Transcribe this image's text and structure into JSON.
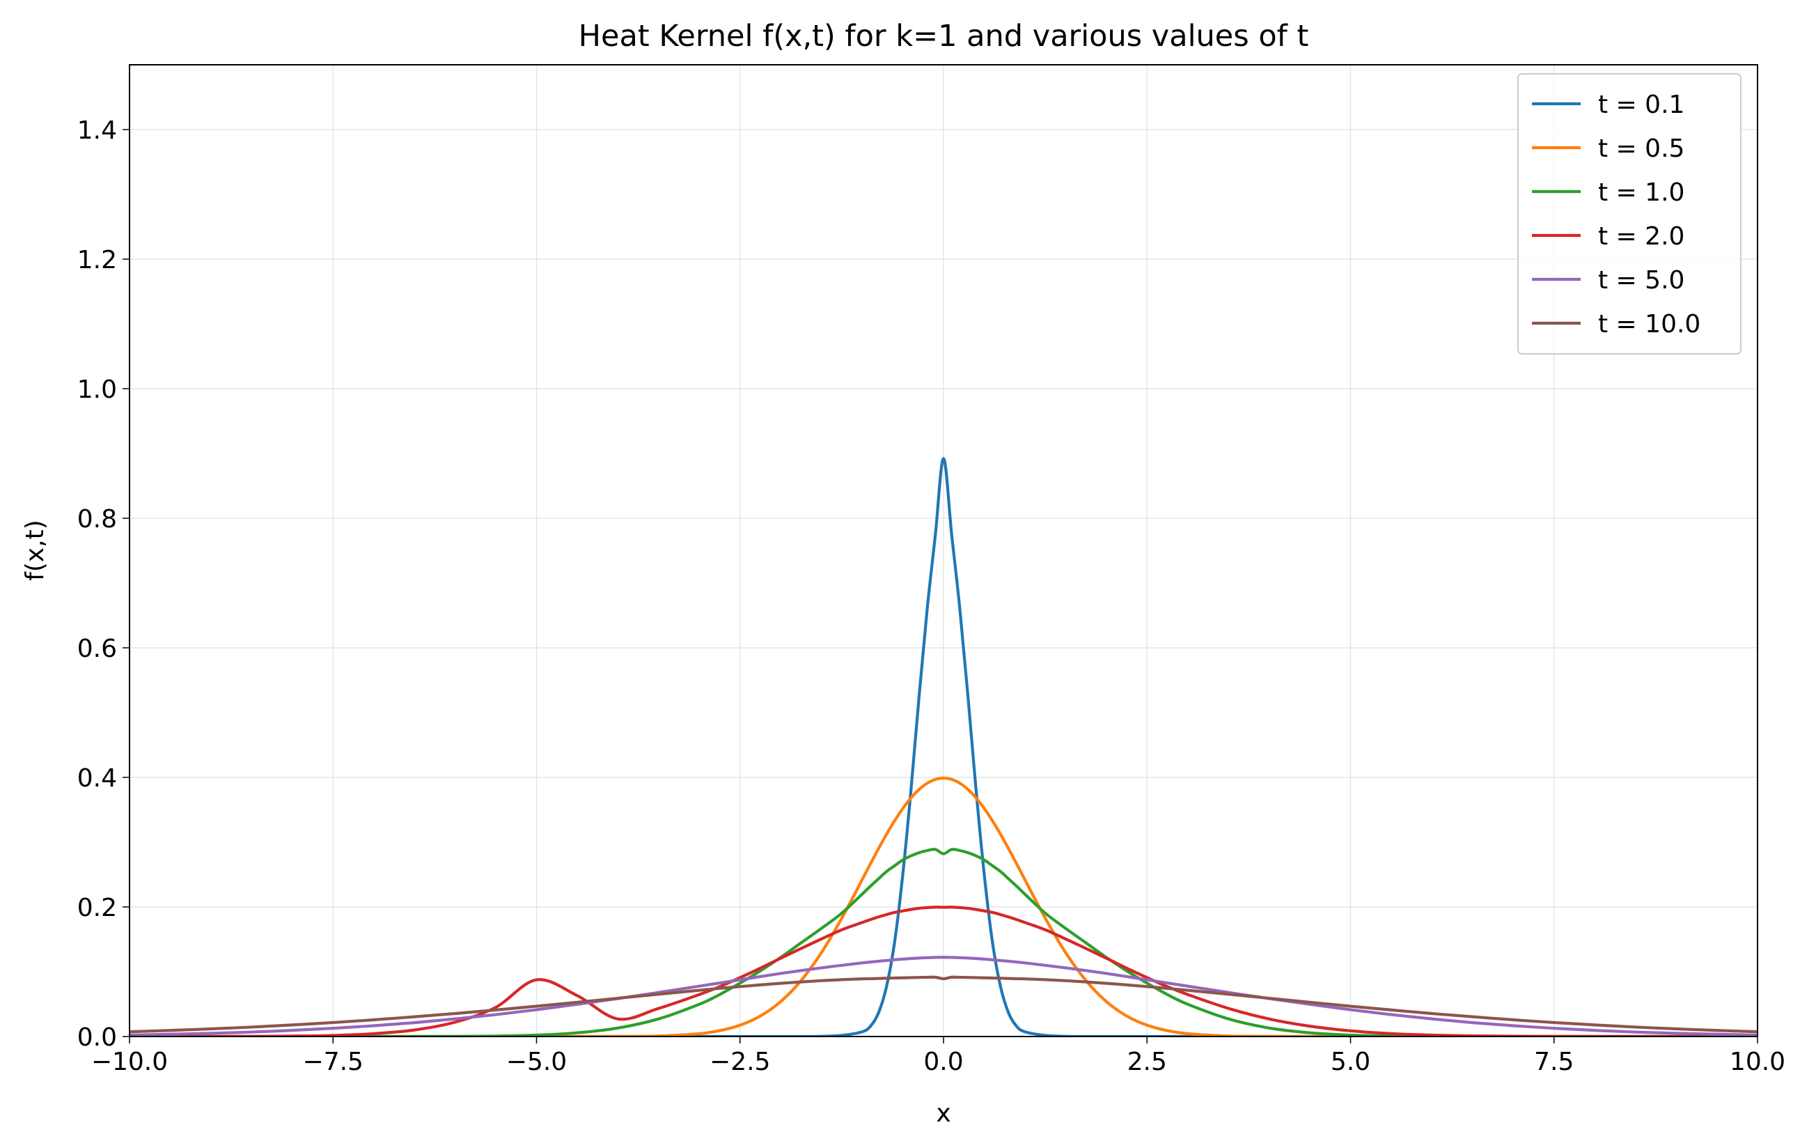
{
  "chart_data": {
    "type": "line",
    "title": "Heat Kernel f(x,t) for k=1 and various values of t",
    "xlabel": "x",
    "ylabel": "f(x,t)",
    "xlim": [
      -10,
      10
    ],
    "ylim": [
      0,
      1.5
    ],
    "xticks": [
      -10,
      -7.5,
      -5,
      -2.5,
      0,
      2.5,
      5,
      7.5,
      10
    ],
    "xtick_labels": [
      "−10.0",
      "−7.5",
      "−5.0",
      "−2.5",
      "0.0",
      "2.5",
      "5.0",
      "7.5",
      "10.0"
    ],
    "yticks": [
      0,
      0.2,
      0.4,
      0.6,
      0.8,
      1.0,
      1.2,
      1.4
    ],
    "ytick_labels": [
      "0.0",
      "0.2",
      "0.4",
      "0.6",
      "0.8",
      "1.0",
      "1.2",
      "1.4"
    ],
    "grid": true,
    "legend_position": "top-right",
    "x": [
      -10,
      -9.5,
      -9,
      -8.5,
      -8,
      -7.5,
      -7,
      -6.5,
      -6,
      -5.5,
      -5,
      -4.5,
      -4,
      -3.5,
      -3,
      -2.75,
      -2.5,
      -2.25,
      -2,
      -1.75,
      -1.5,
      -1.25,
      -1,
      -0.9,
      -0.8,
      -0.7,
      -0.6,
      -0.5,
      -0.4,
      -0.3,
      -0.2,
      -0.1,
      0,
      0.1,
      0.2,
      0.3,
      0.4,
      0.5,
      0.6,
      0.7,
      0.8,
      0.9,
      1,
      1.25,
      1.5,
      1.75,
      2,
      2.25,
      2.5,
      2.75,
      3,
      3.5,
      4,
      4.5,
      5,
      5.5,
      6,
      6.5,
      7,
      7.5,
      8,
      8.5,
      9,
      9.5,
      10
    ],
    "series": [
      {
        "name": "t = 0.1",
        "color": "#1f77b4",
        "values": [
          0,
          0,
          0,
          0,
          0,
          0,
          0,
          0,
          0,
          0,
          0,
          0,
          0,
          0,
          0,
          0,
          0,
          0,
          0,
          0,
          0.00032,
          0.00177,
          0.0073,
          0.0155,
          0.0361,
          0.0772,
          0.1466,
          0.2505,
          0.3802,
          0.5254,
          0.6607,
          0.7749,
          0.8921,
          0.7749,
          0.6607,
          0.5254,
          0.3802,
          0.2505,
          0.1466,
          0.0772,
          0.0361,
          0.0155,
          0.0073,
          0.00177,
          0.00032,
          0,
          0,
          0,
          0,
          0,
          0,
          0,
          0,
          0,
          0,
          0,
          0,
          0,
          0,
          0,
          0,
          0,
          0,
          0,
          0
        ]
      },
      {
        "name": "t = 0.5",
        "color": "#ff7f0e",
        "values": [
          0,
          0,
          0,
          0,
          0,
          0,
          0,
          0,
          0,
          0,
          0,
          0,
          0.00013,
          0.00087,
          0.0044,
          0.0091,
          0.0175,
          0.0317,
          0.054,
          0.0863,
          0.1295,
          0.1826,
          0.242,
          0.2661,
          0.2897,
          0.3123,
          0.3332,
          0.3521,
          0.3683,
          0.3814,
          0.391,
          0.3969,
          0.3989,
          0.3969,
          0.391,
          0.3814,
          0.3683,
          0.3521,
          0.3332,
          0.3123,
          0.2897,
          0.2661,
          0.242,
          0.1826,
          0.1295,
          0.0863,
          0.054,
          0.0317,
          0.0175,
          0.0091,
          0.0044,
          0.00087,
          0.00013,
          0,
          0,
          0,
          0,
          0,
          0,
          0,
          0,
          0,
          0,
          0,
          0
        ]
      },
      {
        "name": "t = 1.0",
        "color": "#2ca02c",
        "values": [
          0,
          0,
          0,
          0,
          0,
          0,
          1e-05,
          6e-05,
          0.00023,
          0.00076,
          0.0022,
          0.0057,
          0.0131,
          0.0272,
          0.0498,
          0.0648,
          0.0824,
          0.1014,
          0.1221,
          0.1446,
          0.1669,
          0.1904,
          0.2197,
          0.2318,
          0.2433,
          0.2547,
          0.2637,
          0.2725,
          0.2789,
          0.2838,
          0.2871,
          0.2888,
          0.2821,
          0.2888,
          0.2871,
          0.2838,
          0.2789,
          0.2725,
          0.2637,
          0.2547,
          0.2433,
          0.2318,
          0.2197,
          0.1904,
          0.1669,
          0.1446,
          0.1221,
          0.1014,
          0.0824,
          0.0648,
          0.0498,
          0.0272,
          0.0131,
          0.0057,
          0.0022,
          0.00076,
          0.00023,
          6e-05,
          1e-05,
          0,
          0,
          0,
          0,
          0,
          0
        ]
      },
      {
        "name": "t = 2.0",
        "color": "#d62728",
        "values": [
          1e-05,
          3e-05,
          8e-05,
          0.00023,
          0.00067,
          0.0017,
          0.0044,
          0.0101,
          0.0222,
          0.0451,
          0.0876,
          0.0632,
          0.0271,
          0.0434,
          0.0648,
          0.0769,
          0.0909,
          0.1055,
          0.1209,
          0.1359,
          0.1506,
          0.1647,
          0.176,
          0.1804,
          0.1845,
          0.1882,
          0.1916,
          0.1939,
          0.1961,
          0.1979,
          0.199,
          0.1997,
          0.1995,
          0.1997,
          0.199,
          0.1979,
          0.1961,
          0.1939,
          0.1916,
          0.1882,
          0.1845,
          0.1804,
          0.176,
          0.1647,
          0.1506,
          0.1359,
          0.1209,
          0.1055,
          0.0909,
          0.0769,
          0.0648,
          0.0434,
          0.0271,
          0.016,
          0.0088,
          0.0045,
          0.0022,
          0.001,
          0.0004,
          0.00017,
          7e-05,
          3e-05,
          1e-05,
          0,
          0
        ]
      },
      {
        "name": "t = 5.0",
        "color": "#9467bd",
        "values": [
          0.0023,
          0.0035,
          0.005,
          0.0069,
          0.0095,
          0.0127,
          0.0167,
          0.0214,
          0.0272,
          0.0338,
          0.0414,
          0.0497,
          0.0586,
          0.068,
          0.0778,
          0.0826,
          0.0876,
          0.0925,
          0.0974,
          0.1018,
          0.106,
          0.1099,
          0.1136,
          0.1149,
          0.1162,
          0.1173,
          0.1185,
          0.1195,
          0.1204,
          0.1211,
          0.1217,
          0.1221,
          0.1223,
          0.1221,
          0.1217,
          0.1211,
          0.1204,
          0.1195,
          0.1185,
          0.1173,
          0.1162,
          0.1149,
          0.1136,
          0.1099,
          0.106,
          0.1018,
          0.0974,
          0.0925,
          0.0876,
          0.0826,
          0.0778,
          0.068,
          0.0586,
          0.0497,
          0.0414,
          0.0338,
          0.0272,
          0.0214,
          0.0167,
          0.0127,
          0.0095,
          0.0069,
          0.005,
          0.0035,
          0.0023
        ]
      },
      {
        "name": "t = 10.0",
        "color": "#8c564b",
        "values": [
          0.0074,
          0.0094,
          0.0118,
          0.0146,
          0.0179,
          0.0216,
          0.0258,
          0.0305,
          0.0355,
          0.041,
          0.0468,
          0.0529,
          0.0591,
          0.0653,
          0.0714,
          0.0743,
          0.0771,
          0.0797,
          0.0821,
          0.0843,
          0.0862,
          0.0878,
          0.089,
          0.0892,
          0.0896,
          0.09,
          0.0903,
          0.0906,
          0.0909,
          0.0912,
          0.0914,
          0.0915,
          0.0892,
          0.0915,
          0.0914,
          0.0912,
          0.0909,
          0.0906,
          0.0903,
          0.09,
          0.0896,
          0.0892,
          0.089,
          0.0878,
          0.0862,
          0.0843,
          0.0821,
          0.0797,
          0.0771,
          0.0743,
          0.0714,
          0.0653,
          0.0591,
          0.0529,
          0.0468,
          0.041,
          0.0355,
          0.0305,
          0.0258,
          0.0216,
          0.0179,
          0.0146,
          0.0118,
          0.0094,
          0.0074
        ]
      }
    ]
  }
}
